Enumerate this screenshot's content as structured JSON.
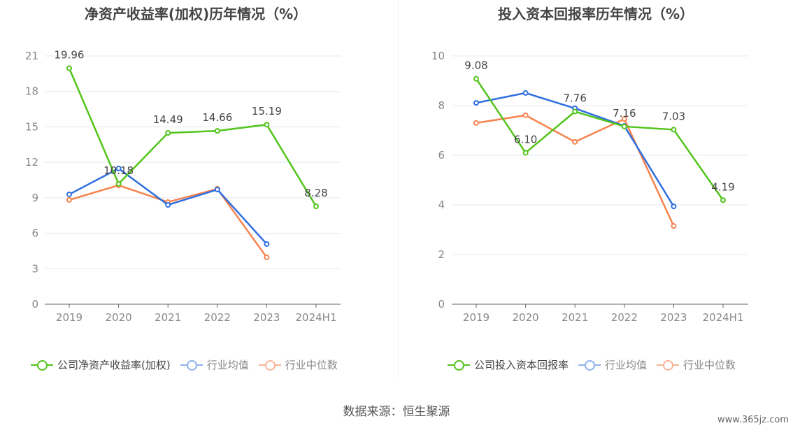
{
  "chart_data": [
    {
      "type": "line",
      "title": "净资产收益率(加权)历年情况（%）",
      "categories": [
        "2019",
        "2020",
        "2021",
        "2022",
        "2023",
        "2024H1"
      ],
      "ylim": [
        0,
        21
      ],
      "yticks": [
        0,
        3,
        6,
        9,
        12,
        15,
        18,
        21
      ],
      "series": [
        {
          "name": "公司净资产收益率(加权)",
          "color": "#52c41a",
          "values": [
            19.96,
            10.18,
            14.49,
            14.66,
            15.19,
            8.28
          ],
          "labels": [
            "19.96",
            "10.18",
            "14.49",
            "14.66",
            "15.19",
            "8.28"
          ]
        },
        {
          "name": "行业均值",
          "color": "#2f6fe0",
          "values": [
            9.29,
            11.48,
            8.4,
            9.7,
            5.09,
            null
          ]
        },
        {
          "name": "行业中位数",
          "color": "#f7834e",
          "values": [
            8.82,
            10.06,
            8.64,
            9.76,
            3.96,
            null
          ]
        }
      ]
    },
    {
      "type": "line",
      "title": "投入资本回报率历年情况（%）",
      "categories": [
        "2019",
        "2020",
        "2021",
        "2022",
        "2023",
        "2024H1"
      ],
      "ylim": [
        0,
        10
      ],
      "yticks": [
        0,
        2,
        4,
        6,
        8,
        10
      ],
      "series": [
        {
          "name": "公司投入资本回报率",
          "color": "#52c41a",
          "values": [
            9.08,
            6.1,
            7.76,
            7.16,
            7.03,
            4.19
          ],
          "labels": [
            "9.08",
            "6.10",
            "7.76",
            "7.16",
            "7.03",
            "4.19"
          ]
        },
        {
          "name": "行业均值",
          "color": "#2f6fe0",
          "values": [
            8.11,
            8.51,
            7.89,
            7.18,
            3.94,
            null
          ]
        },
        {
          "name": "行业中位数",
          "color": "#f7834e",
          "values": [
            7.3,
            7.61,
            6.54,
            7.46,
            3.15,
            null
          ]
        }
      ]
    }
  ],
  "source": "数据来源：恒生聚源",
  "watermark": "www.365jz.com"
}
